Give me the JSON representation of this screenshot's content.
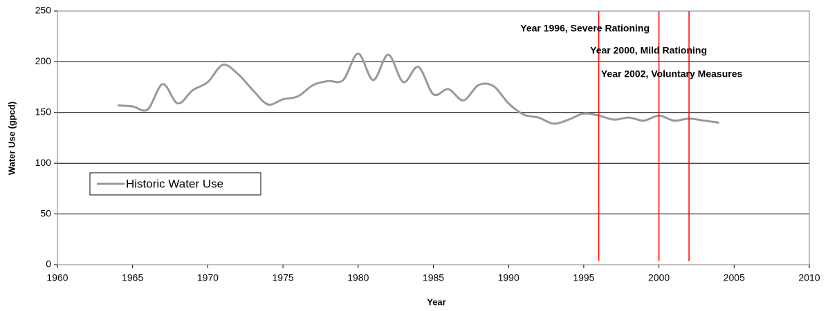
{
  "chart_data": {
    "type": "line",
    "x_label": "Year",
    "y_label": "Water Use (gpcd)",
    "x": [
      1964,
      1965,
      1966,
      1967,
      1968,
      1969,
      1970,
      1971,
      1972,
      1973,
      1974,
      1975,
      1976,
      1977,
      1978,
      1979,
      1980,
      1981,
      1982,
      1983,
      1984,
      1985,
      1986,
      1987,
      1988,
      1989,
      1990,
      1991,
      1992,
      1993,
      1994,
      1995,
      1996,
      1997,
      1998,
      1999,
      2000,
      2001,
      2002,
      2003,
      2004
    ],
    "series": [
      {
        "name": "Historic Water Use",
        "color": "#999999",
        "values": [
          157,
          156,
          153,
          178,
          159,
          172,
          180,
          197,
          188,
          172,
          158,
          163,
          166,
          177,
          181,
          182,
          208,
          182,
          207,
          180,
          195,
          168,
          173,
          162,
          177,
          176,
          159,
          148,
          145,
          139,
          143,
          149,
          147,
          143,
          145,
          142,
          147,
          142,
          144,
          142,
          140
        ]
      }
    ],
    "annotations": [
      {
        "x": 1996,
        "label": "Year 1996, Severe Rationing",
        "color": "#ff0000"
      },
      {
        "x": 2000,
        "label": "Year 2000, Mild Rationing",
        "color": "#ff0000"
      },
      {
        "x": 2002,
        "label": "Year 2002, Voluntary Measures",
        "color": "#ff0000"
      }
    ],
    "xlim": [
      1960,
      2010
    ],
    "xticks": [
      1960,
      1965,
      1970,
      1975,
      1980,
      1985,
      1990,
      1995,
      2000,
      2005,
      2010
    ],
    "ylim": [
      0,
      250
    ],
    "yticks": [
      0,
      50,
      100,
      150,
      200,
      250
    ],
    "grid": true,
    "legend": "left"
  }
}
